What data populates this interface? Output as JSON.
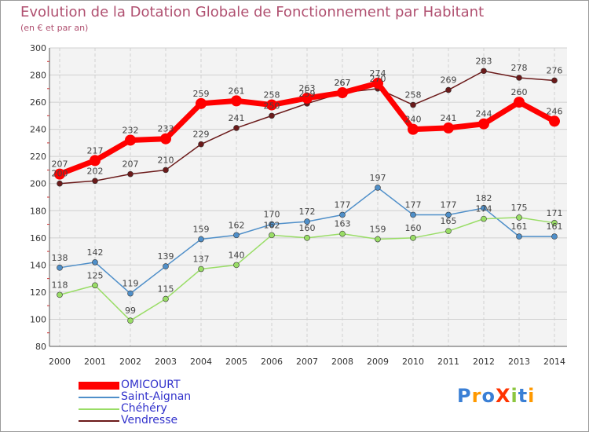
{
  "chart_data": {
    "type": "line",
    "title": "Evolution de la Dotation Globale de Fonctionnement par Habitant",
    "subtitle": "(en € et par an)",
    "xlabel": "",
    "ylabel": "",
    "ylim": [
      80,
      300
    ],
    "yticks": [
      80,
      100,
      120,
      140,
      160,
      180,
      200,
      220,
      240,
      260,
      280,
      300
    ],
    "categories": [
      "2000",
      "2001",
      "2002",
      "2003",
      "2004",
      "2005",
      "2006",
      "2007",
      "2008",
      "2009",
      "2010",
      "2011",
      "2012",
      "2013",
      "2014"
    ],
    "grid": true,
    "legend_position": "bottom-left",
    "series": [
      {
        "name": "OMICOURT",
        "color": "#ff0000",
        "values": [
          207,
          217,
          232,
          233,
          259,
          261,
          258,
          263,
          267,
          274,
          240,
          241,
          244,
          260,
          246
        ]
      },
      {
        "name": "Saint-Aignan",
        "color": "#4f8fc9",
        "values": [
          138,
          142,
          119,
          139,
          159,
          162,
          170,
          172,
          177,
          197,
          177,
          177,
          182,
          161,
          161
        ]
      },
      {
        "name": "Chéhéry",
        "color": "#99dd66",
        "values": [
          118,
          125,
          99,
          115,
          137,
          140,
          162,
          160,
          163,
          159,
          160,
          165,
          174,
          175,
          171
        ]
      },
      {
        "name": "Vendresse",
        "color": "#6b1a1a",
        "values": [
          200,
          202,
          207,
          210,
          229,
          241,
          250,
          259,
          267,
          270,
          258,
          269,
          283,
          278,
          276
        ]
      }
    ]
  },
  "logo": {
    "text": "ProXiti",
    "colors": [
      "#3a7fd5",
      "#ff9900",
      "#3a7fd5",
      "#ff3300",
      "#8cc63f",
      "#3a7fd5",
      "#ff9900"
    ]
  }
}
